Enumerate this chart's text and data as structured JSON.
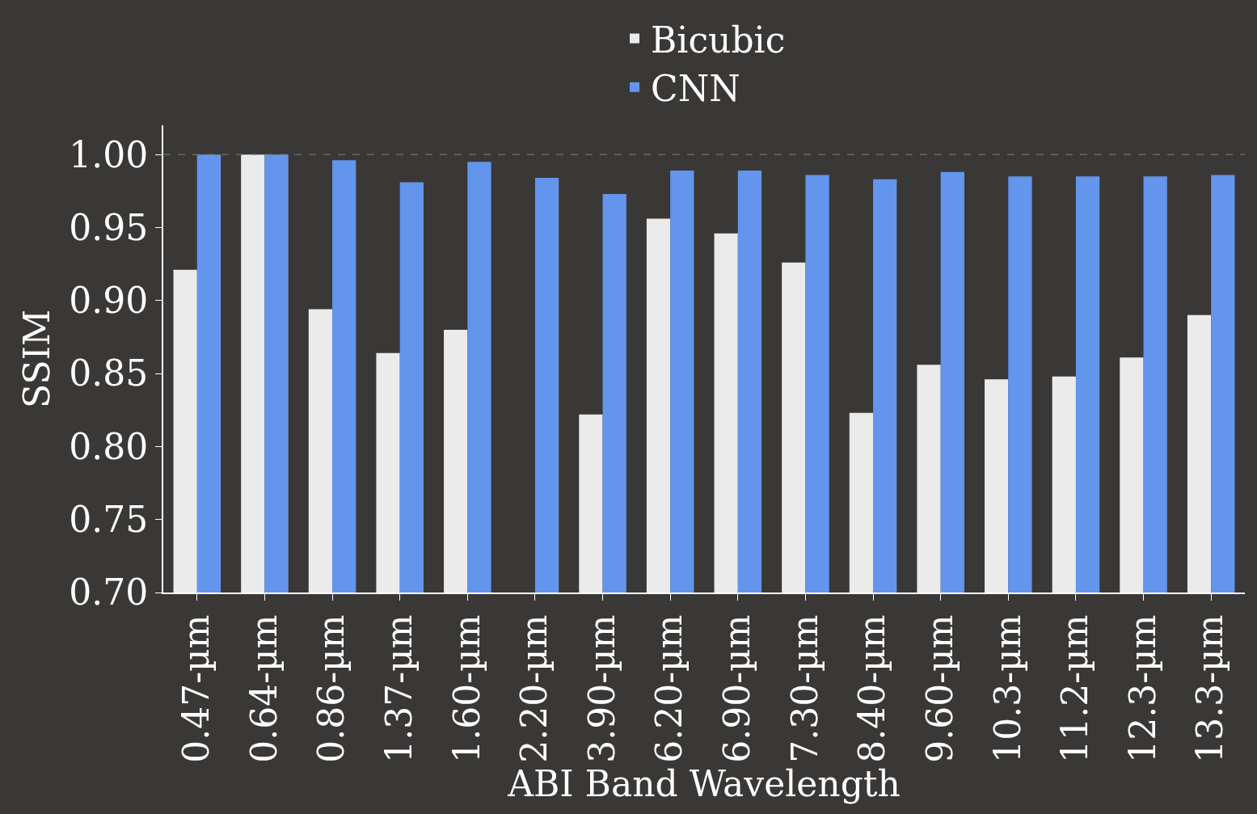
{
  "chart_data": {
    "type": "bar",
    "xlabel": "ABI Band Wavelength",
    "ylabel": "SSIM",
    "categories": [
      "0.47-µm",
      "0.64-µm",
      "0.86-µm",
      "1.37-µm",
      "1.60-µm",
      "2.20-µm",
      "3.90-µm",
      "6.20-µm",
      "6.90-µm",
      "7.30-µm",
      "8.40-µm",
      "9.60-µm",
      "10.3-µm",
      "11.2-µm",
      "12.3-µm",
      "13.3-µm"
    ],
    "series": [
      {
        "name": "Bicubic",
        "color": "#ebebeb",
        "values": [
          0.921,
          1.0,
          0.894,
          0.864,
          0.88,
          null,
          0.822,
          0.956,
          0.946,
          0.926,
          0.823,
          0.856,
          0.846,
          0.848,
          0.861,
          0.89
        ]
      },
      {
        "name": "CNN",
        "color": "#6495ed",
        "values": [
          1.0,
          1.0,
          0.996,
          0.981,
          0.995,
          0.984,
          0.973,
          0.989,
          0.989,
          0.986,
          0.983,
          0.988,
          0.985,
          0.985,
          0.985,
          0.986
        ]
      }
    ],
    "ylim": [
      0.7,
      1.02
    ],
    "yticks": [
      {
        "value": 0.7,
        "label": "0.70"
      },
      {
        "value": 0.75,
        "label": "0.75"
      },
      {
        "value": 0.8,
        "label": "0.80"
      },
      {
        "value": 0.85,
        "label": "0.85"
      },
      {
        "value": 0.9,
        "label": "0.90"
      },
      {
        "value": 0.95,
        "label": "0.95"
      },
      {
        "value": 1.0,
        "label": "1.00"
      }
    ],
    "ref_lines": [
      {
        "axis": "y",
        "value": 1.0,
        "color": "#808080",
        "line_style": "dashed"
      }
    ],
    "legend": "top"
  }
}
